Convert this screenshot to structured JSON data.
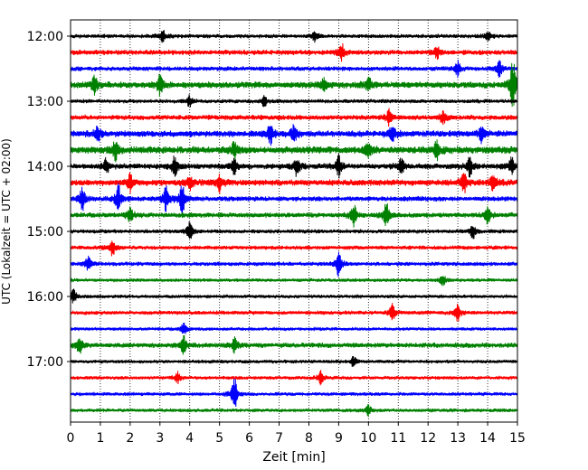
{
  "chart_data": {
    "type": "line",
    "title": "",
    "xlabel": "Zeit  [min]",
    "ylabel": "UTC (Lokalzeit = UTC + 02:00)",
    "xlim": [
      0,
      15
    ],
    "x_ticks": [
      0,
      1,
      2,
      3,
      4,
      5,
      6,
      7,
      8,
      9,
      10,
      11,
      12,
      13,
      14,
      15
    ],
    "y_tick_labels": [
      "12:00",
      "13:00",
      "14:00",
      "15:00",
      "16:00",
      "17:00"
    ],
    "grid": "vertical dotted",
    "colors": [
      "#000000",
      "#ff0000",
      "#0000ff",
      "#008000"
    ],
    "traces": [
      {
        "start": "12:00",
        "color": "black",
        "amplitude": 0.16,
        "events": [
          [
            3.1,
            0.22
          ],
          [
            8.2,
            0.2
          ],
          [
            14.0,
            0.2
          ]
        ]
      },
      {
        "start": "12:15",
        "color": "red",
        "amplitude": 0.2,
        "events": [
          [
            9.1,
            0.3
          ],
          [
            12.3,
            0.22
          ]
        ]
      },
      {
        "start": "12:30",
        "color": "blue",
        "amplitude": 0.18,
        "events": [
          [
            13.0,
            0.28
          ],
          [
            14.4,
            0.3
          ]
        ]
      },
      {
        "start": "12:45",
        "color": "green",
        "amplitude": 0.25,
        "events": [
          [
            0.8,
            0.3
          ],
          [
            3.0,
            0.35
          ],
          [
            8.5,
            0.3
          ],
          [
            10.0,
            0.3
          ],
          [
            14.85,
            0.9
          ]
        ]
      },
      {
        "start": "13:00",
        "color": "black",
        "amplitude": 0.16,
        "events": [
          [
            4.0,
            0.2
          ],
          [
            6.5,
            0.2
          ]
        ]
      },
      {
        "start": "13:15",
        "color": "red",
        "amplitude": 0.2,
        "events": [
          [
            10.7,
            0.3
          ],
          [
            12.5,
            0.25
          ]
        ]
      },
      {
        "start": "13:30",
        "color": "blue",
        "amplitude": 0.25,
        "events": [
          [
            0.9,
            0.3
          ],
          [
            6.7,
            0.35
          ],
          [
            7.5,
            0.3
          ],
          [
            10.8,
            0.35
          ],
          [
            13.8,
            0.3
          ]
        ]
      },
      {
        "start": "13:45",
        "color": "green",
        "amplitude": 0.28,
        "events": [
          [
            1.5,
            0.35
          ],
          [
            5.5,
            0.3
          ],
          [
            10.0,
            0.3
          ],
          [
            12.3,
            0.3
          ]
        ]
      },
      {
        "start": "14:00",
        "color": "black",
        "amplitude": 0.22,
        "events": [
          [
            1.2,
            0.3
          ],
          [
            3.5,
            0.4
          ],
          [
            5.5,
            0.3
          ],
          [
            7.6,
            0.35
          ],
          [
            9.0,
            0.35
          ],
          [
            11.1,
            0.3
          ],
          [
            13.4,
            0.35
          ],
          [
            14.8,
            0.3
          ]
        ]
      },
      {
        "start": "14:15",
        "color": "red",
        "amplitude": 0.25,
        "events": [
          [
            2.0,
            0.35
          ],
          [
            4.0,
            0.3
          ],
          [
            5.0,
            0.3
          ],
          [
            13.2,
            0.35
          ],
          [
            14.2,
            0.35
          ]
        ]
      },
      {
        "start": "14:30",
        "color": "blue",
        "amplitude": 0.2,
        "events": [
          [
            0.4,
            0.45
          ],
          [
            1.6,
            0.5
          ],
          [
            3.2,
            0.45
          ],
          [
            3.75,
            0.6
          ]
        ]
      },
      {
        "start": "14:45",
        "color": "green",
        "amplitude": 0.2,
        "events": [
          [
            2.0,
            0.3
          ],
          [
            9.5,
            0.4
          ],
          [
            10.6,
            0.45
          ],
          [
            14.0,
            0.3
          ]
        ]
      },
      {
        "start": "15:00",
        "color": "black",
        "amplitude": 0.16,
        "events": [
          [
            4.0,
            0.35
          ],
          [
            13.5,
            0.3
          ]
        ]
      },
      {
        "start": "15:15",
        "color": "red",
        "amplitude": 0.16,
        "events": [
          [
            1.4,
            0.3
          ]
        ]
      },
      {
        "start": "15:30",
        "color": "blue",
        "amplitude": 0.16,
        "events": [
          [
            0.6,
            0.3
          ],
          [
            9.0,
            0.45
          ]
        ]
      },
      {
        "start": "15:45",
        "color": "green",
        "amplitude": 0.14,
        "events": [
          [
            12.5,
            0.2
          ]
        ]
      },
      {
        "start": "16:00",
        "color": "black",
        "amplitude": 0.13,
        "events": [
          [
            0.1,
            0.3
          ]
        ]
      },
      {
        "start": "16:15",
        "color": "red",
        "amplitude": 0.16,
        "events": [
          [
            10.8,
            0.28
          ],
          [
            13.0,
            0.3
          ]
        ]
      },
      {
        "start": "16:30",
        "color": "blue",
        "amplitude": 0.13,
        "events": [
          [
            3.8,
            0.2
          ]
        ]
      },
      {
        "start": "16:45",
        "color": "green",
        "amplitude": 0.2,
        "events": [
          [
            0.3,
            0.3
          ],
          [
            3.8,
            0.3
          ],
          [
            5.5,
            0.25
          ]
        ]
      },
      {
        "start": "17:00",
        "color": "black",
        "amplitude": 0.14,
        "events": [
          [
            9.5,
            0.2
          ]
        ]
      },
      {
        "start": "17:15",
        "color": "red",
        "amplitude": 0.14,
        "events": [
          [
            3.6,
            0.2
          ],
          [
            8.4,
            0.25
          ]
        ]
      },
      {
        "start": "17:30",
        "color": "blue",
        "amplitude": 0.14,
        "events": [
          [
            5.5,
            0.6
          ]
        ]
      },
      {
        "start": "17:45",
        "color": "green",
        "amplitude": 0.14,
        "events": [
          [
            10.0,
            0.2
          ]
        ]
      }
    ]
  }
}
